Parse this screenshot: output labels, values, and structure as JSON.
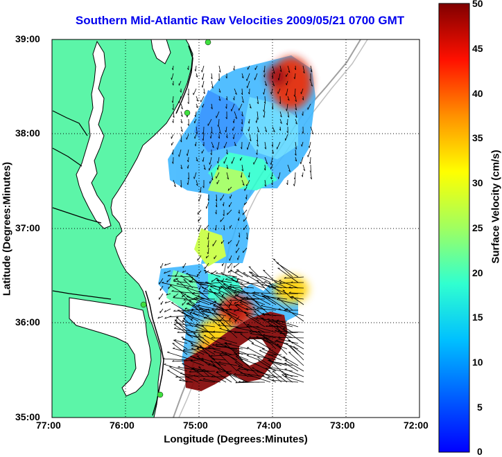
{
  "title": "Southern Mid-Atlantic Raw Velocities 2009/05/21 0700 GMT",
  "axes": {
    "xlabel": "Longitude (Degrees:Minutes)",
    "ylabel": "Latitude (Degrees:Minutes)",
    "x_ticks": [
      "77:00",
      "76:00",
      "75:00",
      "74:00",
      "73:00",
      "72:00"
    ],
    "y_ticks": [
      "39:00",
      "38:00",
      "37:00",
      "36:00",
      "35:00"
    ],
    "x_range_deg_west": [
      77,
      72
    ],
    "y_range_deg_north": [
      35,
      39
    ],
    "grid": "dotted"
  },
  "colorbar": {
    "label": "Surface Velocity (cm/s)",
    "ticks": [
      "50",
      "45",
      "40",
      "35",
      "30",
      "25",
      "20",
      "15",
      "10",
      "5",
      "0"
    ],
    "range": [
      0,
      50
    ],
    "colormap": "jet"
  },
  "colors": {
    "title": "#0000ee",
    "land": "#5cf5a8",
    "coast": "#000000",
    "isobath": "#a0a0a0",
    "arrows": "#000000"
  }
}
